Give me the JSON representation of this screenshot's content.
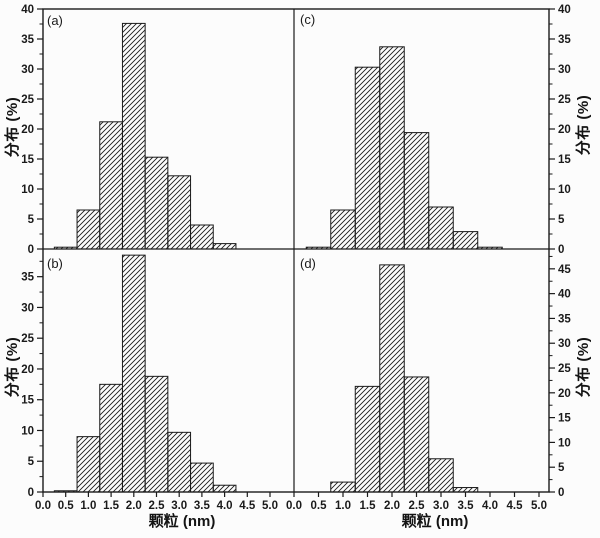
{
  "figure": {
    "background": "#fcfcfc",
    "line_color": "#1a1a1a",
    "hatch_style": "diagonal-forward-slash"
  },
  "labels": {
    "ylabel": "分布 (%)",
    "xlabel": "颗粒 (nm)"
  },
  "chart_data": [
    {
      "type": "bar",
      "panel": "a",
      "label": "(a)",
      "title": "",
      "xlabel": "颗粒 (nm)",
      "ylabel": "分布 (%)",
      "y_axis_side": "left",
      "ylim": [
        0,
        40
      ],
      "xlim": [
        0,
        5.5
      ],
      "y_ticks": [
        0,
        5,
        10,
        15,
        20,
        25,
        30,
        35,
        40
      ],
      "x_ticks": [
        "0.0",
        "0.5",
        "1.0",
        "1.5",
        "2.0",
        "2.5",
        "3.0",
        "3.5",
        "4.0",
        "4.5",
        "5.0"
      ],
      "bin_width": 0.5,
      "categories": [
        0.5,
        1.0,
        1.5,
        2.0,
        2.5,
        3.0,
        3.5,
        4.0
      ],
      "values": [
        0.3,
        6.5,
        21.2,
        37.6,
        15.3,
        12.2,
        4.0,
        0.9
      ],
      "grid": false,
      "legend": "none"
    },
    {
      "type": "bar",
      "panel": "b",
      "label": "(b)",
      "title": "",
      "xlabel": "颗粒 (nm)",
      "ylabel": "分布 (%)",
      "y_axis_side": "left",
      "ylim": [
        0,
        39.5
      ],
      "xlim": [
        0,
        5.5
      ],
      "y_ticks": [
        0,
        5,
        10,
        15,
        20,
        25,
        30,
        35
      ],
      "x_ticks": [
        "0.0",
        "0.5",
        "1.0",
        "1.5",
        "2.0",
        "2.5",
        "3.0",
        "3.5",
        "4.0",
        "4.5",
        "5.0"
      ],
      "bin_width": 0.5,
      "categories": [
        0.5,
        1.0,
        1.5,
        2.0,
        2.5,
        3.0,
        3.5,
        4.0
      ],
      "values": [
        0.2,
        9.0,
        17.5,
        38.5,
        18.8,
        9.7,
        4.7,
        1.1
      ],
      "grid": false,
      "legend": "none"
    },
    {
      "type": "bar",
      "panel": "c",
      "label": "(c)",
      "title": "",
      "xlabel": "颗粒 (nm)",
      "ylabel": "分布 (%)",
      "y_axis_side": "right",
      "ylim": [
        0,
        40
      ],
      "xlim": [
        0,
        5.2
      ],
      "y_ticks": [
        0,
        5,
        10,
        15,
        20,
        25,
        30,
        35,
        40
      ],
      "x_ticks": [
        "0.0",
        "0.5",
        "1.0",
        "1.5",
        "2.0",
        "2.5",
        "3.0",
        "3.5",
        "4.0",
        "4.5",
        "5.0"
      ],
      "bin_width": 0.5,
      "categories": [
        0.5,
        1.0,
        1.5,
        2.0,
        2.5,
        3.0,
        3.5,
        4.0
      ],
      "values": [
        0.3,
        6.5,
        30.3,
        33.7,
        19.4,
        7.0,
        2.9,
        0.3
      ],
      "grid": false,
      "legend": "none"
    },
    {
      "type": "bar",
      "panel": "d",
      "label": "(d)",
      "title": "",
      "xlabel": "颗粒 (nm)",
      "ylabel": "分布 (%)",
      "y_axis_side": "right",
      "ylim": [
        0,
        49
      ],
      "xlim": [
        0,
        5.2
      ],
      "y_ticks": [
        0,
        5,
        10,
        15,
        20,
        25,
        30,
        35,
        40,
        45
      ],
      "x_ticks": [
        "0.0",
        "0.5",
        "1.0",
        "1.5",
        "2.0",
        "2.5",
        "3.0",
        "3.5",
        "4.0",
        "4.5",
        "5.0"
      ],
      "bin_width": 0.5,
      "categories": [
        1.0,
        1.5,
        2.0,
        2.5,
        3.0,
        3.5
      ],
      "values": [
        2.0,
        21.3,
        45.8,
        23.2,
        6.7,
        0.9
      ],
      "grid": false,
      "legend": "none"
    }
  ]
}
